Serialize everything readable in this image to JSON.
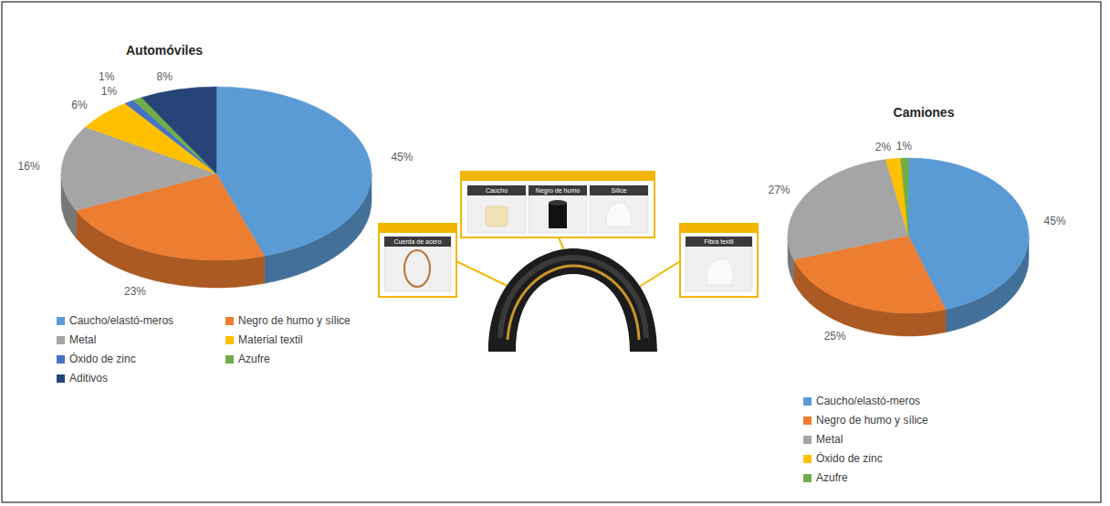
{
  "chart_data": [
    {
      "type": "pie",
      "title": "Automóviles",
      "categories": [
        "Caucho/elastó-meros",
        "Negro de humo y sílice",
        "Metal",
        "Material textil",
        "Óxido de zinc",
        "Azufre",
        "Aditivos"
      ],
      "values": [
        45,
        23,
        16,
        6,
        1,
        1,
        8
      ],
      "value_labels": [
        "45%",
        "23%",
        "16%",
        "6%",
        "1%",
        "1%",
        "8%"
      ],
      "colors": [
        "#5b9bd5",
        "#ed7d31",
        "#a5a5a5",
        "#ffc000",
        "#4472c4",
        "#70ad47",
        "#264478"
      ],
      "data_labels": true,
      "legend": "bottom"
    },
    {
      "type": "pie",
      "title": "Camiones",
      "categories": [
        "Caucho/elastó-meros",
        "Negro de humo y sílice",
        "Metal",
        "Óxido de zinc",
        "Azufre"
      ],
      "values": [
        45,
        25,
        27,
        2,
        1
      ],
      "value_labels": [
        "45%",
        "25%",
        "27%",
        "2%",
        "1%"
      ],
      "colors": [
        "#5b9bd5",
        "#ed7d31",
        "#a5a5a5",
        "#ffc000",
        "#70ad47"
      ],
      "data_labels": true,
      "legend": "bottom"
    }
  ],
  "illustration": {
    "labels": [
      "Caucho",
      "Negro de humo",
      "Sílice",
      "Cuerda de acero",
      "Fibra textil"
    ]
  }
}
